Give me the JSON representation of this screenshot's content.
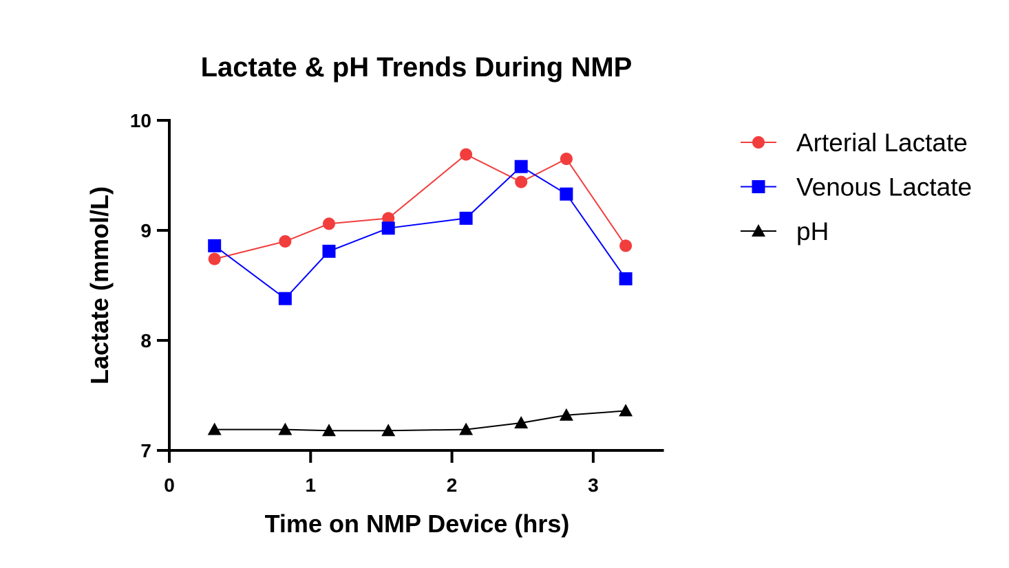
{
  "chart_data": {
    "type": "line",
    "title": "Lactate & pH Trends During NMP",
    "xlabel": "Time on NMP Device (hrs)",
    "ylabel": "Lactate (mmol/L)",
    "xlim": [
      0,
      3.5
    ],
    "ylim": [
      7,
      10
    ],
    "xticks": [
      "0",
      "1",
      "2",
      "3"
    ],
    "yticks": [
      "7",
      "8",
      "9",
      "10"
    ],
    "grid": false,
    "legend_position": "right",
    "x": [
      0.32,
      0.82,
      1.13,
      1.55,
      2.1,
      2.49,
      2.81,
      3.23
    ],
    "series": [
      {
        "name": "Arterial Lactate",
        "color": "#f23d3d",
        "marker": "circle",
        "values": [
          8.74,
          8.9,
          9.06,
          9.11,
          9.69,
          9.44,
          9.65,
          8.86
        ]
      },
      {
        "name": "Venous Lactate",
        "color": "#0000ff",
        "marker": "square",
        "values": [
          8.86,
          8.38,
          8.81,
          9.02,
          9.11,
          9.58,
          9.33,
          8.56
        ]
      },
      {
        "name": "pH",
        "color": "#000000",
        "marker": "triangle",
        "values": [
          7.19,
          7.19,
          7.18,
          7.18,
          7.19,
          7.25,
          7.32,
          7.36
        ]
      }
    ]
  }
}
